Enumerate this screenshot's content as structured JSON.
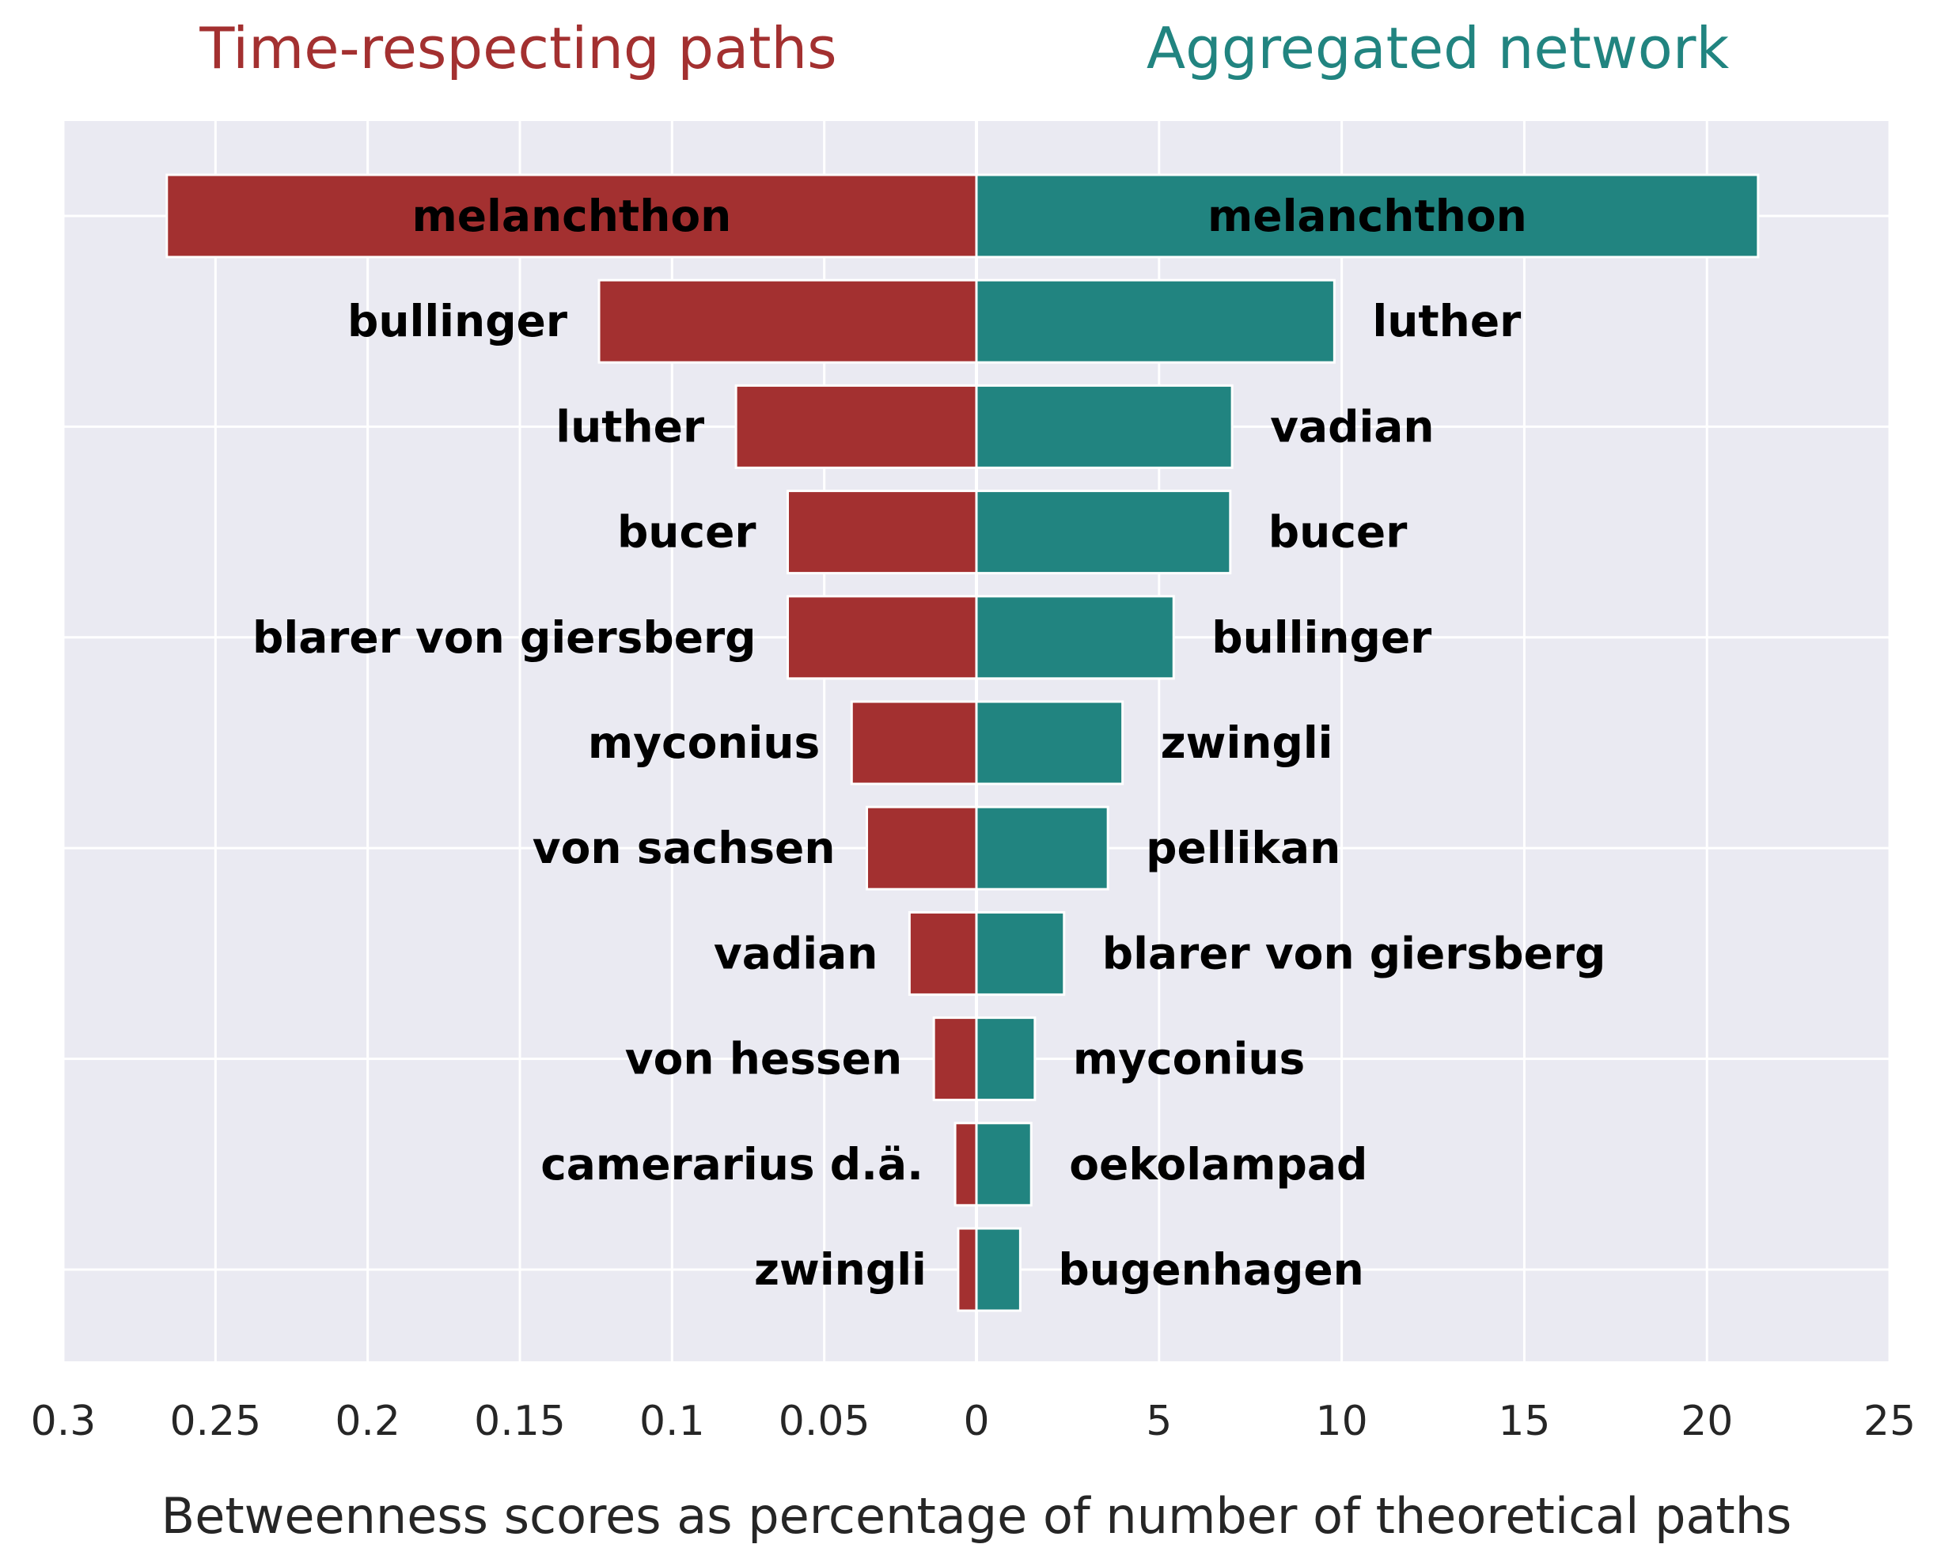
{
  "chart_data": {
    "type": "bar",
    "orientation": "horizontal",
    "xlabel": "Betweenness scores as percentage of number of theoretical paths",
    "grid": true,
    "colors": {
      "left": "#a33030",
      "right": "#218480",
      "background": "#eaeaf2",
      "grid": "#ffffff"
    },
    "left": {
      "title": "Time-respecting paths",
      "xlim": [
        0.3,
        0
      ],
      "ticks": [
        "0.3",
        "0.25",
        "0.2",
        "0.15",
        "0.1",
        "0.05",
        "0"
      ],
      "tick_values": [
        0.3,
        0.25,
        0.2,
        0.15,
        0.1,
        0.05,
        0
      ],
      "categories": [
        "melanchthon",
        "bullinger",
        "luther",
        "bucer",
        "blarer von giersberg",
        "myconius",
        "von sachsen",
        "vadian",
        "von hessen",
        "camerarius d.ä.",
        "zwingli"
      ],
      "values": [
        0.266,
        0.124,
        0.079,
        0.062,
        0.062,
        0.041,
        0.036,
        0.022,
        0.014,
        0.007,
        0.006
      ]
    },
    "right": {
      "title": "Aggregated network",
      "xlim": [
        0,
        25
      ],
      "ticks": [
        "5",
        "10",
        "15",
        "20",
        "25"
      ],
      "tick_values": [
        5,
        10,
        15,
        20,
        25
      ],
      "categories": [
        "melanchthon",
        "luther",
        "vadian",
        "bucer",
        "bullinger",
        "zwingli",
        "pellikan",
        "blarer von giersberg",
        "myconius",
        "oekolampad",
        "bugenhagen"
      ],
      "values": [
        21.4,
        9.8,
        7.0,
        6.95,
        5.4,
        4.0,
        3.6,
        2.4,
        1.6,
        1.5,
        1.2
      ]
    }
  }
}
